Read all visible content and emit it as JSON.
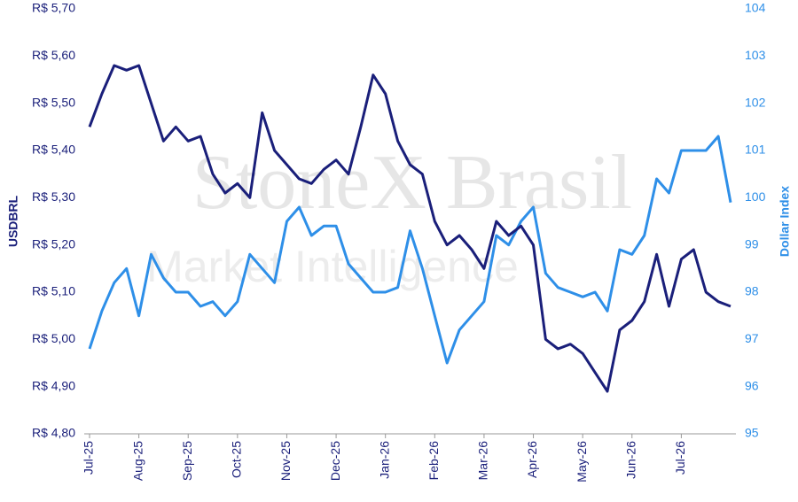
{
  "chart_data": {
    "type": "line",
    "watermark": "StoneX Brasil",
    "watermark_sub": "Market Intelligence",
    "categories": [
      "Jul-25",
      null,
      null,
      null,
      "Aug-25",
      null,
      null,
      null,
      "Sep-25",
      null,
      null,
      null,
      "Oct-25",
      null,
      null,
      null,
      "Nov-25",
      null,
      null,
      null,
      "Dec-25",
      null,
      null,
      null,
      "Jan-26",
      null,
      null,
      null,
      "Feb-26",
      null,
      null,
      null,
      "Mar-26",
      null,
      null,
      null,
      "Apr-26",
      null,
      null,
      null,
      "May-26",
      null,
      null,
      null,
      "Jun-26",
      null,
      null,
      null,
      "Jul-26",
      null,
      null,
      null,
      null
    ],
    "series": [
      {
        "name": "USDBRL",
        "color": "#1a1f7a",
        "axis": "y",
        "values": [
          5.45,
          5.52,
          5.58,
          5.57,
          5.58,
          5.5,
          5.42,
          5.45,
          5.42,
          5.43,
          5.35,
          5.31,
          5.33,
          5.3,
          5.48,
          5.4,
          5.37,
          5.34,
          5.33,
          5.36,
          5.38,
          5.35,
          5.45,
          5.56,
          5.52,
          5.42,
          5.37,
          5.35,
          5.25,
          5.2,
          5.22,
          5.19,
          5.15,
          5.25,
          5.22,
          5.24,
          5.2,
          5.0,
          4.98,
          4.99,
          4.97,
          4.93,
          4.89,
          5.02,
          5.04,
          5.08,
          5.18,
          5.07,
          5.17,
          5.19,
          5.1,
          5.08,
          5.07
        ]
      },
      {
        "name": "Dollar Index",
        "color": "#2e8fe8",
        "axis": "y2",
        "values": [
          96.8,
          97.6,
          98.2,
          98.5,
          97.5,
          98.8,
          98.3,
          98.0,
          98.0,
          97.7,
          97.8,
          97.5,
          97.8,
          98.8,
          98.5,
          98.2,
          99.5,
          99.8,
          99.2,
          99.4,
          99.4,
          98.6,
          98.3,
          98.0,
          98.0,
          98.1,
          99.3,
          98.5,
          97.5,
          96.5,
          97.2,
          97.5,
          97.8,
          99.2,
          99.0,
          99.5,
          99.8,
          98.4,
          98.1,
          98.0,
          97.9,
          98.0,
          97.6,
          98.9,
          98.8,
          99.2,
          100.4,
          100.1,
          101.0,
          101.0,
          101.0,
          101.3,
          99.9
        ]
      }
    ],
    "ylim": [
      4.8,
      5.7
    ],
    "yticks": [
      {
        "value": 4.8,
        "label": "R$ 4,80"
      },
      {
        "value": 4.9,
        "label": "R$ 4,90"
      },
      {
        "value": 5.0,
        "label": "R$ 5,00"
      },
      {
        "value": 5.1,
        "label": "R$ 5,10"
      },
      {
        "value": 5.2,
        "label": "R$ 5,20"
      },
      {
        "value": 5.3,
        "label": "R$ 5,30"
      },
      {
        "value": 5.4,
        "label": "R$ 5,40"
      },
      {
        "value": 5.5,
        "label": "R$ 5,50"
      },
      {
        "value": 5.6,
        "label": "R$ 5,60"
      },
      {
        "value": 5.7,
        "label": "R$ 5,70"
      }
    ],
    "y2lim": [
      95,
      104
    ],
    "y2ticks": [
      95,
      96,
      97,
      98,
      99,
      100,
      101,
      102,
      103,
      104
    ],
    "grid": false
  }
}
